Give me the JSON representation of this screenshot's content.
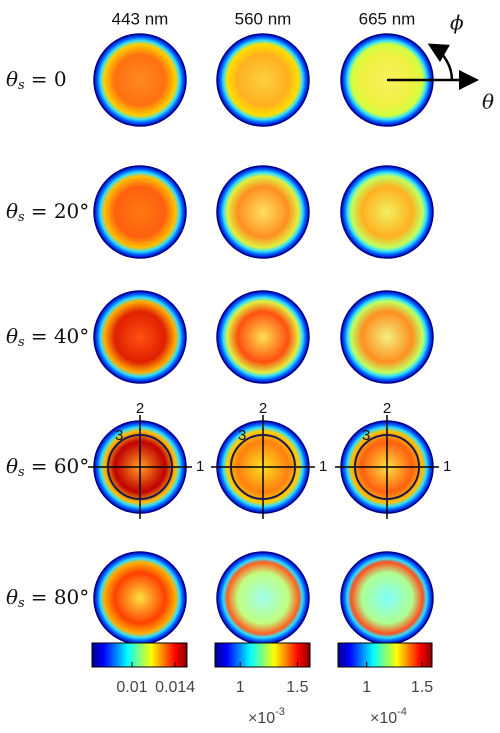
{
  "columns": [
    "443 nm",
    "560 nm",
    "665 nm"
  ],
  "rows": [
    {
      "symbol": "θ",
      "subscript": "s",
      "value": "= 0"
    },
    {
      "symbol": "θ",
      "subscript": "s",
      "value": "= 20°"
    },
    {
      "symbol": "θ",
      "subscript": "s",
      "value": "= 40°"
    },
    {
      "symbol": "θ",
      "subscript": "s",
      "value": "= 60°"
    },
    {
      "symbol": "θ",
      "subscript": "s",
      "value": "= 80°"
    }
  ],
  "annotations": {
    "phi": "ϕ",
    "theta": "θ",
    "axis_labels": [
      "1",
      "2",
      "3"
    ]
  },
  "colorbars": [
    {
      "lim": [
        0.0063,
        0.0151
      ],
      "ticks": [
        0.01,
        0.014
      ]
    },
    {
      "lim": [
        0.78,
        1.61
      ],
      "ticks": [
        1,
        1.5
      ],
      "multiplier": "×10",
      "exponent": "-3"
    },
    {
      "lim": [
        0.74,
        1.59
      ],
      "ticks": [
        1,
        1.5
      ],
      "multiplier": "×10",
      "exponent": "-4"
    }
  ]
}
